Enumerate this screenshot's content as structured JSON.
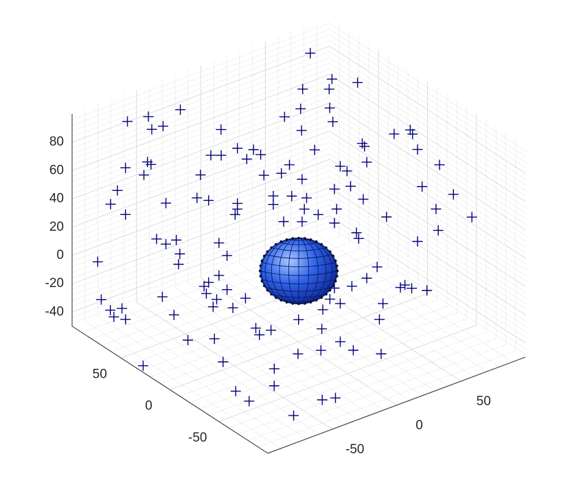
{
  "chart_data": {
    "type": "scatter3",
    "series": [
      {
        "color": "#00007a",
        "marker": "+",
        "x": [
          69,
          60,
          51,
          70,
          38,
          -38,
          -59,
          -67,
          -73,
          -59,
          -33,
          22,
          8,
          37,
          28,
          6,
          49,
          60,
          58,
          25,
          26,
          52,
          -92,
          -81,
          -79,
          -83,
          -37,
          -29,
          -50,
          -45,
          -32,
          -25,
          1,
          -11,
          -24,
          -15,
          -5,
          14,
          17,
          27,
          63,
          -55,
          -96,
          -99,
          -92,
          -72,
          -57,
          -51,
          -37,
          -37,
          -38,
          -19,
          -10,
          -19,
          -3,
          11,
          19,
          54,
          70,
          25,
          12,
          3,
          -4,
          -14,
          -5,
          11,
          37,
          61,
          79,
          62,
          22,
          23,
          -77,
          -72,
          -67,
          -65,
          -46,
          -66,
          52,
          -42,
          -90,
          32,
          27,
          20,
          46,
          49,
          57,
          44,
          -53,
          -51,
          -46,
          -52,
          -47,
          -42,
          -33,
          -49,
          -39,
          -74,
          -88,
          -84,
          -82,
          -78,
          -76,
          -68,
          11,
          9,
          14,
          5,
          -7,
          35,
          33,
          5,
          -28,
          -26,
          -20,
          -48,
          -61,
          14,
          -95,
          -58,
          -38,
          -15,
          -1,
          15,
          26,
          -51,
          -74,
          -75,
          -38,
          -30,
          -64
        ],
        "y": [
          79,
          45,
          36,
          32,
          46,
          71,
          76,
          62,
          79,
          61,
          36,
          27,
          25,
          17,
          2,
          5,
          -33,
          -35,
          -40,
          -32,
          -33,
          -53,
          56,
          48,
          47,
          49,
          14,
          8,
          24,
          20,
          11,
          6,
          -15,
          -5,
          4,
          -2,
          -10,
          -24,
          -27,
          -34,
          -61,
          28,
          59,
          62,
          56,
          41,
          29,
          25,
          14,
          14,
          15,
          1,
          -6,
          1,
          -12,
          -22,
          -28,
          -55,
          -66,
          -33,
          -23,
          -16,
          -11,
          -3,
          -10,
          -22,
          -41,
          -60,
          -73,
          -61,
          -30,
          -31,
          44,
          41,
          37,
          36,
          21,
          36,
          -53,
          18,
          87,
          -38,
          -34,
          -28,
          -48,
          -51,
          -56,
          -46,
          27,
          25,
          21,
          26,
          22,
          18,
          11,
          23,
          16,
          42,
          86,
          82,
          81,
          78,
          77,
          38,
          -22,
          -20,
          -24,
          -18,
          -9,
          -40,
          -39,
          -17,
          7,
          6,
          2,
          23,
          33,
          -24,
          34,
          1,
          -25,
          -19,
          -24,
          -36,
          -50,
          -42,
          -33,
          -48,
          -74,
          -77,
          -79
        ],
        "z": [
          95,
          95,
          95,
          95,
          95,
          95,
          95,
          95,
          95,
          95,
          95,
          95,
          95,
          95,
          95,
          95,
          95,
          95,
          95,
          96,
          94,
          92,
          79,
          83,
          81,
          74,
          93,
          92,
          88,
          88,
          85,
          88,
          92,
          81,
          74,
          75,
          71,
          80,
          77,
          83,
          81,
          74,
          63,
          53,
          46,
          54,
          58,
          56,
          54,
          50,
          46,
          59,
          59,
          53,
          58,
          64,
          66,
          66,
          60,
          57,
          50,
          46,
          50,
          41,
          41,
          40,
          44,
          50,
          44,
          35,
          33,
          29,
          29,
          25,
          28,
          18,
          26,
          11,
          27,
          17,
          -2,
          9,
          1,
          -5,
          -4,
          -6,
          -8,
          -6,
          -5,
          -2,
          3,
          -10,
          -14,
          -7,
          -13,
          -19,
          -20,
          -12,
          -29,
          -36,
          -41,
          -35,
          -43,
          -25,
          -6,
          -14,
          -17,
          -21,
          -28,
          -17,
          -28,
          -35,
          -34,
          -39,
          -36,
          -42,
          -43,
          -44,
          -50,
          -45,
          -45,
          -45,
          -45,
          -45,
          -45,
          -45,
          -45,
          -45,
          -45,
          -45,
          -45
        ]
      }
    ],
    "sphere": {
      "center": [
        0,
        0,
        0
      ],
      "radius": 24,
      "color": "#1f4fd8"
    },
    "xlim": [
      -100,
      100
    ],
    "ylim": [
      -100,
      100
    ],
    "zlim": [
      -50,
      100
    ],
    "xticks": [
      -50,
      0,
      50
    ],
    "yticks": [
      -50,
      0,
      50
    ],
    "zticks": [
      -40,
      -20,
      0,
      20,
      40,
      60,
      80
    ],
    "grid": true,
    "minor_grid": true
  }
}
